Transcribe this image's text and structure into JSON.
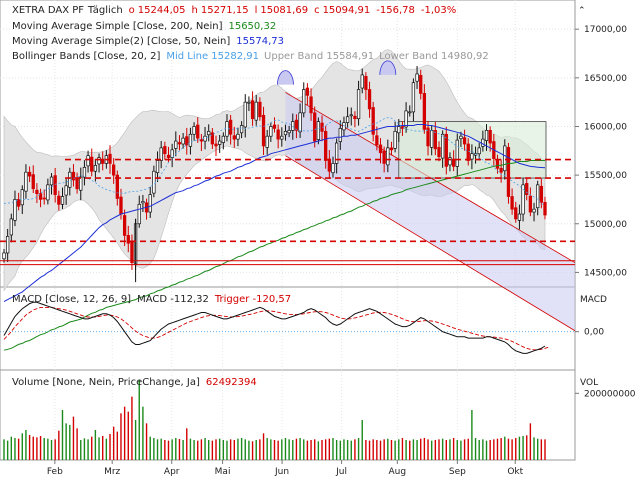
{
  "header": {
    "instrument": "XETRA DAX PF",
    "interval": "Täglich",
    "o_label": "o",
    "open": "15244,05",
    "h_label": "h",
    "high": "15271,15",
    "l_label": "l",
    "low": "15081,69",
    "c_label": "c",
    "close": "15094,91",
    "change": "-156,78",
    "change_pct": "-1,03%",
    "ind1": "Moving Average Simple  [Close, 200, Nein]",
    "ind1_val": "15650,32",
    "ind2": "Moving Average Simple(2)  [Close, 50, Nein]",
    "ind2_val": "15574,73",
    "ind3": "Bollinger Bands  [Close, 20, 2]",
    "ind3_mid": "Mid Line 15282,91",
    "ind3_up": "Upper Band 15584,91",
    "ind3_low": "Lower Band 14980,92"
  },
  "macd_header": {
    "label": "MACD  [Close, 12, 26, 9]",
    "macd": "MACD -112,32",
    "trigger": "Trigger -120,57"
  },
  "volume_header": {
    "label": "Volume  [None, Nein, PriceChange, Ja]",
    "value": "62492394"
  },
  "side": {
    "macd": "MACD",
    "vol": "VOL",
    "vol_tick": "200000000",
    "macd_tick": "0,00"
  },
  "colors": {
    "up": "#111111",
    "down": "#d40000",
    "ma200": "#1a8a1a",
    "ma50": "#1c2fd6",
    "boll": "#4aa0e8",
    "bollfill": "#e4e4e4",
    "channel": "#c8c8f0",
    "macd": "#111111",
    "trigger": "#d40000",
    "guide": "#d40000"
  },
  "chart_data": [
    {
      "type": "candlestick",
      "title": "XETRA DAX PF",
      "ylim": [
        14350,
        17300
      ],
      "y_ticks": [
        "17000,00",
        "16500,00",
        "16000,00",
        "15500,00",
        "15000,00",
        "14500,00"
      ],
      "x_ticks": [
        "Feb",
        "Mrz",
        "Apr",
        "Mai",
        "Jun",
        "Jul",
        "Aug",
        "Sep",
        "Okt"
      ],
      "horizontal_lines": [
        15660,
        15470,
        14820,
        14620,
        14580
      ],
      "close": [
        14700,
        14870,
        15050,
        15250,
        15180,
        15350,
        15530,
        15490,
        15360,
        15310,
        15250,
        15260,
        15400,
        15480,
        15300,
        15200,
        15280,
        15390,
        15530,
        15450,
        15360,
        15480,
        15580,
        15700,
        15540,
        15600,
        15680,
        15620,
        15700,
        15620,
        15500,
        15260,
        15100,
        14880,
        14800,
        14600,
        15000,
        15200,
        15230,
        15120,
        15300,
        15540,
        15650,
        15780,
        15720,
        15680,
        15760,
        15850,
        15820,
        15880,
        15810,
        15920,
        16000,
        15880,
        15850,
        15900,
        15950,
        15820,
        15800,
        15850,
        15900,
        16050,
        15920,
        15870,
        15920,
        16010,
        16250,
        16250,
        16080,
        16250,
        16100,
        15800,
        15900,
        16000,
        15980,
        15870,
        15900,
        15950,
        15960,
        16050,
        15960,
        16140,
        16380,
        16320,
        16140,
        15850,
        16050,
        15950,
        15650,
        15540,
        15620,
        15830,
        15980,
        16040,
        16100,
        16120,
        16080,
        16380,
        16530,
        16380,
        16180,
        15920,
        15810,
        15730,
        15620,
        15780,
        15760,
        15950,
        16000,
        15980,
        16160,
        16150,
        16450,
        16540,
        16340,
        15970,
        15800,
        15960,
        15770,
        15690,
        15920,
        15590,
        15680,
        15590,
        15860,
        15900,
        15820,
        15650,
        15720,
        15720,
        15780,
        15870,
        15960,
        15830,
        15670,
        15570,
        15530,
        15800,
        15280,
        15150,
        15050,
        15100,
        15400,
        15300,
        15120,
        15150,
        15400,
        15220,
        15090
      ],
      "ma200": [
        13700,
        13710,
        13720,
        13740,
        13760,
        13770,
        13790,
        13800,
        13820,
        13840,
        13860,
        13870,
        13890,
        13910,
        13920,
        13940,
        13950,
        13970,
        13990,
        14000,
        14010,
        14020,
        14040,
        14060,
        14080,
        14090,
        14110,
        14120,
        14140,
        14150,
        14160,
        14170,
        14180,
        14190,
        14200,
        14210,
        14220,
        14240,
        14250,
        14260,
        14280,
        14290,
        14310,
        14320,
        14340,
        14350,
        14370,
        14380,
        14400,
        14410,
        14430,
        14440,
        14460,
        14470,
        14490,
        14510,
        14520,
        14540,
        14560,
        14570,
        14590,
        14610,
        14620,
        14640,
        14660,
        14670,
        14690,
        14710,
        14720,
        14740,
        14760,
        14770,
        14790,
        14800,
        14820,
        14830,
        14850,
        14860,
        14880,
        14890,
        14910,
        14920,
        14940,
        14950,
        14970,
        14980,
        15000,
        15010,
        15030,
        15040,
        15060,
        15070,
        15090,
        15100,
        15120,
        15130,
        15150,
        15170,
        15180,
        15200,
        15210,
        15230,
        15240,
        15260,
        15270,
        15280,
        15300,
        15310,
        15320,
        15330,
        15350,
        15360,
        15370,
        15380,
        15390,
        15400,
        15410,
        15420,
        15430,
        15440,
        15450,
        15460,
        15470,
        15480,
        15490,
        15500,
        15510,
        15520,
        15530,
        15540,
        15550,
        15560,
        15570,
        15580,
        15590,
        15600,
        15600,
        15610,
        15620,
        15620,
        15630,
        15640,
        15640,
        15640,
        15650,
        15650,
        15650,
        15650,
        15650
      ],
      "ma50": [
        14200,
        14220,
        14240,
        14260,
        14280,
        14300,
        14330,
        14360,
        14390,
        14420,
        14450,
        14470,
        14500,
        14520,
        14550,
        14580,
        14610,
        14640,
        14670,
        14700,
        14730,
        14760,
        14800,
        14840,
        14880,
        14920,
        14960,
        14990,
        15010,
        15040,
        15060,
        15080,
        15100,
        15110,
        15120,
        15130,
        15140,
        15150,
        15160,
        15170,
        15180,
        15200,
        15220,
        15240,
        15260,
        15280,
        15300,
        15320,
        15330,
        15340,
        15360,
        15370,
        15390,
        15400,
        15420,
        15440,
        15450,
        15470,
        15490,
        15500,
        15520,
        15530,
        15540,
        15560,
        15580,
        15590,
        15610,
        15620,
        15640,
        15660,
        15680,
        15690,
        15700,
        15720,
        15730,
        15740,
        15750,
        15760,
        15770,
        15780,
        15790,
        15800,
        15810,
        15820,
        15830,
        15840,
        15850,
        15860,
        15870,
        15880,
        15880,
        15890,
        15890,
        15900,
        15900,
        15910,
        15910,
        15920,
        15930,
        15940,
        15950,
        15960,
        15970,
        15980,
        15990,
        16000,
        16000,
        16000,
        16010,
        16010,
        16010,
        16010,
        16010,
        16020,
        16020,
        16020,
        16010,
        16010,
        16000,
        15990,
        15980,
        15970,
        15960,
        15950,
        15940,
        15930,
        15910,
        15900,
        15880,
        15860,
        15840,
        15820,
        15800,
        15780,
        15760,
        15740,
        15720,
        15700,
        15680,
        15660,
        15640,
        15620,
        15610,
        15600,
        15590,
        15585,
        15580,
        15578,
        15575
      ]
    },
    {
      "type": "line",
      "title": "MACD",
      "ylim": [
        -300,
        350
      ],
      "y_ticks": [
        "0,00"
      ],
      "series": [
        {
          "name": "MACD",
          "values": [
            -30,
            20,
            70,
            120,
            150,
            180,
            200,
            220,
            230,
            230,
            220,
            210,
            200,
            190,
            180,
            170,
            160,
            150,
            140,
            130,
            120,
            110,
            100,
            100,
            110,
            120,
            130,
            140,
            140,
            130,
            110,
            80,
            40,
            0,
            -40,
            -80,
            -100,
            -100,
            -90,
            -80,
            -70,
            -40,
            -10,
            20,
            40,
            60,
            70,
            80,
            90,
            100,
            110,
            120,
            130,
            140,
            150,
            150,
            140,
            130,
            120,
            110,
            100,
            100,
            110,
            120,
            130,
            140,
            150,
            160,
            170,
            180,
            190,
            180,
            160,
            140,
            120,
            110,
            100,
            100,
            110,
            120,
            130,
            140,
            150,
            170,
            180,
            170,
            150,
            130,
            110,
            80,
            60,
            50,
            60,
            80,
            100,
            120,
            140,
            150,
            160,
            170,
            180,
            170,
            160,
            140,
            120,
            100,
            80,
            60,
            50,
            40,
            40,
            50,
            70,
            90,
            110,
            100,
            80,
            60,
            40,
            20,
            0,
            -10,
            -20,
            -30,
            -40,
            -40,
            -40,
            -50,
            -50,
            -50,
            -50,
            -50,
            -40,
            -40,
            -50,
            -60,
            -70,
            -80,
            -100,
            -130,
            -150,
            -160,
            -170,
            -170,
            -160,
            -150,
            -140,
            -130,
            -112
          ]
        },
        {
          "name": "Trigger",
          "values": [
            -60,
            -30,
            0,
            40,
            70,
            100,
            130,
            150,
            170,
            180,
            190,
            190,
            190,
            190,
            185,
            180,
            175,
            170,
            160,
            150,
            140,
            130,
            120,
            115,
            115,
            115,
            120,
            125,
            130,
            130,
            125,
            115,
            100,
            80,
            55,
            30,
            5,
            -15,
            -30,
            -40,
            -50,
            -50,
            -45,
            -35,
            -20,
            -5,
            10,
            25,
            40,
            55,
            70,
            80,
            90,
            100,
            110,
            120,
            125,
            128,
            128,
            126,
            122,
            118,
            116,
            116,
            118,
            122,
            128,
            134,
            140,
            148,
            156,
            162,
            164,
            162,
            158,
            152,
            146,
            140,
            136,
            134,
            134,
            136,
            140,
            146,
            152,
            156,
            158,
            156,
            150,
            142,
            130,
            118,
            108,
            102,
            100,
            102,
            108,
            114,
            122,
            130,
            138,
            146,
            150,
            152,
            150,
            144,
            136,
            126,
            114,
            102,
            90,
            82,
            78,
            78,
            82,
            86,
            86,
            84,
            78,
            70,
            60,
            50,
            40,
            30,
            20,
            12,
            4,
            -4,
            -12,
            -20,
            -28,
            -34,
            -38,
            -40,
            -42,
            -46,
            -50,
            -56,
            -64,
            -76,
            -90,
            -104,
            -118,
            -130,
            -138,
            -142,
            -142,
            -138,
            -130,
            -121
          ]
        }
      ]
    },
    {
      "type": "bar",
      "title": "Volume",
      "ylim": [
        0,
        270000000
      ],
      "y_ticks": [
        "200000000"
      ],
      "values": [
        62,
        58,
        70,
        66,
        64,
        80,
        90,
        75,
        70,
        68,
        72,
        66,
        64,
        60,
        62,
        88,
        150,
        110,
        105,
        130,
        95,
        60,
        65,
        62,
        70,
        90,
        68,
        72,
        64,
        78,
        100,
        85,
        140,
        160,
        145,
        190,
        120,
        240,
        160,
        110,
        70,
        66,
        62,
        64,
        60,
        58,
        62,
        66,
        63,
        60,
        95,
        64,
        60,
        58,
        62,
        66,
        60,
        58,
        62,
        64,
        60,
        58,
        62,
        60,
        64,
        66,
        62,
        58,
        56,
        60,
        62,
        80,
        66,
        62,
        60,
        58,
        62,
        66,
        62,
        60,
        64,
        66,
        62,
        58,
        60,
        62,
        56,
        60,
        62,
        64,
        66,
        60,
        58,
        62,
        60,
        58,
        62,
        66,
        120,
        60,
        58,
        62,
        60,
        58,
        62,
        64,
        60,
        58,
        62,
        66,
        60,
        58,
        62,
        60,
        64,
        66,
        62,
        58,
        60,
        62,
        64,
        60,
        62,
        66,
        60,
        58,
        62,
        64,
        150,
        66,
        60,
        62,
        58,
        60,
        62,
        64,
        66,
        70,
        64,
        62,
        66,
        70,
        72,
        74,
        110,
        68,
        64,
        62,
        62
      ]
    }
  ]
}
